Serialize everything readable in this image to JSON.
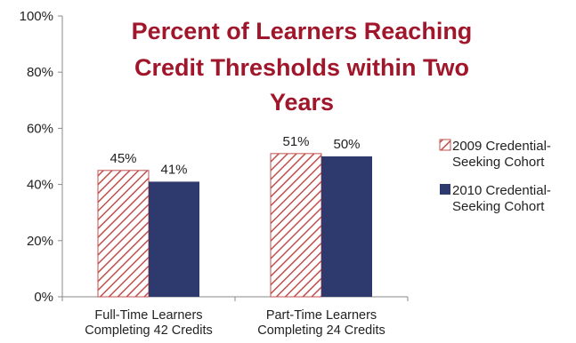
{
  "chart_data": {
    "type": "bar",
    "title_lines": [
      "Percent of Learners Reaching",
      "Credit Thresholds within Two",
      "Years"
    ],
    "categories": [
      [
        "Full-Time Learners",
        "Completing 42 Credits"
      ],
      [
        "Part-Time Learners",
        "Completing 24 Credits"
      ]
    ],
    "series": [
      {
        "name_lines": [
          "2009 Credential-",
          "Seeking Cohort"
        ],
        "values": [
          45,
          51
        ],
        "labels": [
          "45%",
          "51%"
        ],
        "fill": "hatch",
        "color": "#c0504d"
      },
      {
        "name_lines": [
          "2010 Credential-",
          "Seeking Cohort"
        ],
        "values": [
          41,
          50
        ],
        "labels": [
          "41%",
          "50%"
        ],
        "fill": "solid",
        "color": "#2e3a6e"
      }
    ],
    "y_ticks": [
      "0%",
      "20%",
      "40%",
      "60%",
      "80%",
      "100%"
    ],
    "ylim": [
      0,
      100
    ],
    "grid": false,
    "legend_position": "right",
    "title_color": "#a0162a"
  }
}
